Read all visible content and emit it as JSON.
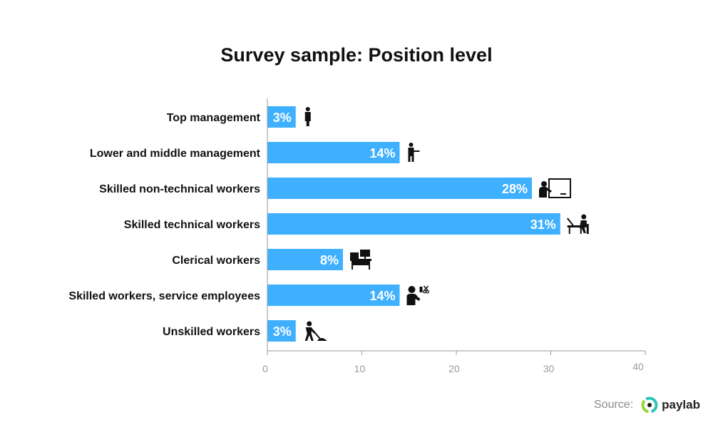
{
  "chart_data": {
    "type": "bar",
    "orientation": "horizontal",
    "title": "Survey sample: Position level",
    "categories": [
      "Top management",
      "Lower and middle management",
      "Skilled non-technical workers",
      "Skilled technical workers",
      "Clerical workers",
      "Skilled workers, service employees",
      "Unskilled workers"
    ],
    "values": [
      3,
      14,
      28,
      31,
      8,
      14,
      3
    ],
    "value_labels": [
      "3%",
      "14%",
      "28%",
      "31%",
      "8%",
      "14%",
      "3%"
    ],
    "icons": [
      "businessman-icon",
      "presenter-icon",
      "teacher-board-icon",
      "desk-computer-icon",
      "office-desk-icon",
      "hairdresser-icon",
      "digger-icon"
    ],
    "xlim": [
      0,
      40
    ],
    "xticks": [
      0,
      10,
      20,
      30,
      40
    ],
    "grid": false,
    "legend": "none",
    "bar_color": "#3fb0ff",
    "xlabel": "",
    "ylabel": ""
  },
  "source": {
    "label": "Source:",
    "brand": "paylab"
  }
}
